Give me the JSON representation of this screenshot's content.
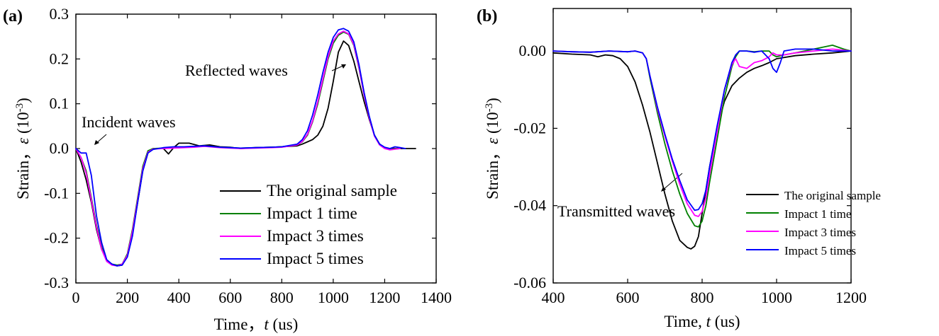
{
  "chart_data": [
    {
      "panel_label": "(a)",
      "type": "line",
      "xlabel_prefix": "Time，",
      "xlabel_var": "t",
      "xlabel_unit": " (us)",
      "ylabel_prefix": "Strain，",
      "ylabel_var": "ε",
      "ylabel_unit_base": " (10",
      "ylabel_unit_exp": "-3",
      "ylabel_unit_close": ")",
      "xlim": [
        0,
        1400
      ],
      "ylim": [
        -0.3,
        0.3
      ],
      "xticks": [
        0,
        200,
        400,
        600,
        800,
        1000,
        1200,
        1400
      ],
      "yticks": [
        -0.3,
        -0.2,
        -0.1,
        0.0,
        0.1,
        0.2,
        0.3
      ],
      "xtick_labels": [
        "0",
        "200",
        "400",
        "600",
        "800",
        "1000",
        "1200",
        "1400"
      ],
      "ytick_labels": [
        "-0.3",
        "-0.2",
        "-0.1",
        "0.0",
        "0.1",
        "0.2",
        "0.3"
      ],
      "grid": false,
      "legend_position": "bottom-right",
      "annotations": [
        "Incident waves",
        "Reflected waves"
      ],
      "series": [
        {
          "name": "The original sample",
          "color": "#000000",
          "x": [
            0,
            20,
            40,
            60,
            80,
            100,
            120,
            140,
            160,
            180,
            200,
            220,
            240,
            260,
            280,
            300,
            340,
            360,
            380,
            400,
            440,
            480,
            520,
            560,
            600,
            640,
            700,
            760,
            800,
            860,
            880,
            900,
            920,
            940,
            960,
            980,
            1000,
            1020,
            1040,
            1060,
            1080,
            1100,
            1120,
            1140,
            1160,
            1180,
            1200,
            1220,
            1240,
            1280,
            1320
          ],
          "y": [
            0.0,
            -0.03,
            -0.07,
            -0.12,
            -0.18,
            -0.225,
            -0.25,
            -0.258,
            -0.262,
            -0.26,
            -0.24,
            -0.19,
            -0.12,
            -0.05,
            -0.01,
            0.0,
            0.0,
            -0.012,
            0.002,
            0.012,
            0.012,
            0.006,
            0.008,
            0.004,
            0.003,
            0.0,
            0.002,
            0.003,
            0.004,
            0.006,
            0.01,
            0.015,
            0.02,
            0.03,
            0.05,
            0.09,
            0.15,
            0.215,
            0.24,
            0.23,
            0.195,
            0.15,
            0.105,
            0.065,
            0.03,
            0.01,
            0.002,
            0.0,
            0.0,
            0.0,
            0.0
          ]
        },
        {
          "name": "Impact 1 time",
          "color": "#008000",
          "x": [
            0,
            20,
            40,
            60,
            80,
            100,
            120,
            140,
            160,
            180,
            200,
            220,
            240,
            260,
            280,
            300,
            340,
            380,
            420,
            460,
            500,
            560,
            600,
            640,
            700,
            760,
            800,
            860,
            880,
            900,
            920,
            940,
            960,
            980,
            1000,
            1020,
            1040,
            1060,
            1080,
            1100,
            1120,
            1140,
            1160,
            1180,
            1200,
            1220,
            1260
          ],
          "y": [
            0.0,
            -0.02,
            -0.05,
            -0.11,
            -0.17,
            -0.22,
            -0.25,
            -0.258,
            -0.26,
            -0.258,
            -0.235,
            -0.18,
            -0.11,
            -0.04,
            -0.005,
            0.0,
            0.001,
            0.002,
            0.003,
            0.004,
            0.006,
            0.003,
            0.002,
            0.001,
            0.002,
            0.003,
            0.004,
            0.008,
            0.015,
            0.03,
            0.06,
            0.1,
            0.15,
            0.2,
            0.235,
            0.253,
            0.26,
            0.255,
            0.23,
            0.18,
            0.12,
            0.07,
            0.03,
            0.01,
            0.002,
            -0.002,
            0.0
          ]
        },
        {
          "name": "Impact 3 times",
          "color": "#ff00ff",
          "x": [
            0,
            20,
            40,
            60,
            80,
            100,
            120,
            140,
            160,
            180,
            200,
            220,
            240,
            260,
            280,
            300,
            340,
            380,
            420,
            460,
            500,
            560,
            600,
            640,
            700,
            760,
            800,
            860,
            880,
            900,
            920,
            940,
            960,
            980,
            1000,
            1020,
            1040,
            1060,
            1080,
            1100,
            1120,
            1140,
            1160,
            1180,
            1200,
            1220,
            1260
          ],
          "y": [
            0.0,
            -0.02,
            -0.055,
            -0.115,
            -0.175,
            -0.225,
            -0.252,
            -0.26,
            -0.262,
            -0.258,
            -0.238,
            -0.185,
            -0.115,
            -0.045,
            -0.008,
            -0.001,
            0.0,
            0.001,
            0.002,
            0.003,
            0.005,
            0.002,
            0.001,
            0.0,
            0.001,
            0.002,
            0.003,
            0.008,
            0.016,
            0.032,
            0.062,
            0.105,
            0.155,
            0.205,
            0.24,
            0.256,
            0.262,
            0.256,
            0.232,
            0.182,
            0.12,
            0.068,
            0.028,
            0.008,
            0.0,
            -0.003,
            0.0
          ]
        },
        {
          "name": "Impact 5 times",
          "color": "#0000ff",
          "x": [
            0,
            20,
            40,
            60,
            80,
            100,
            120,
            140,
            160,
            180,
            200,
            220,
            240,
            260,
            280,
            300,
            340,
            380,
            420,
            460,
            500,
            560,
            600,
            640,
            700,
            760,
            800,
            860,
            880,
            900,
            920,
            940,
            960,
            980,
            1000,
            1020,
            1040,
            1060,
            1080,
            1100,
            1120,
            1140,
            1160,
            1180,
            1200,
            1220,
            1240,
            1260,
            1280
          ],
          "y": [
            0.0,
            -0.01,
            -0.01,
            -0.06,
            -0.15,
            -0.21,
            -0.248,
            -0.258,
            -0.262,
            -0.26,
            -0.242,
            -0.195,
            -0.12,
            -0.05,
            -0.01,
            -0.002,
            0.002,
            0.004,
            0.004,
            0.005,
            0.006,
            0.003,
            0.002,
            0.001,
            0.002,
            0.003,
            0.004,
            0.01,
            0.02,
            0.04,
            0.075,
            0.12,
            0.17,
            0.215,
            0.248,
            0.265,
            0.268,
            0.262,
            0.238,
            0.188,
            0.125,
            0.072,
            0.03,
            0.01,
            0.003,
            0.0,
            0.004,
            0.002,
            0.0
          ]
        }
      ]
    },
    {
      "panel_label": "(b)",
      "type": "line",
      "xlabel_prefix": "Time, ",
      "xlabel_var": "t",
      "xlabel_unit": "  (us)",
      "ylabel_prefix": "Strain，",
      "ylabel_var": "ε",
      "ylabel_unit_base": " (10",
      "ylabel_unit_exp": "-3",
      "ylabel_unit_close": ")",
      "xlim": [
        400,
        1200
      ],
      "ylim": [
        -0.06,
        0.011
      ],
      "xticks": [
        400,
        600,
        800,
        1000,
        1200
      ],
      "yticks": [
        -0.06,
        -0.04,
        -0.02,
        0.0
      ],
      "xtick_labels": [
        "400",
        "600",
        "800",
        "1000",
        "1200"
      ],
      "ytick_labels": [
        "-0.06",
        "-0.04",
        "-0.02",
        "0.00"
      ],
      "grid": false,
      "legend_position": "bottom-right",
      "annotations": [
        "Transmitted waves"
      ],
      "series": [
        {
          "name": "The original sample",
          "color": "#000000",
          "x": [
            400,
            450,
            500,
            520,
            540,
            560,
            580,
            600,
            620,
            640,
            660,
            680,
            700,
            720,
            740,
            760,
            770,
            780,
            790,
            800,
            820,
            840,
            860,
            880,
            900,
            920,
            940,
            960,
            980,
            1000,
            1050,
            1100,
            1150,
            1200
          ],
          "y": [
            -0.0005,
            -0.0008,
            -0.001,
            -0.0015,
            -0.001,
            -0.0012,
            -0.002,
            -0.004,
            -0.008,
            -0.014,
            -0.021,
            -0.029,
            -0.037,
            -0.044,
            -0.049,
            -0.0508,
            -0.0512,
            -0.0505,
            -0.048,
            -0.042,
            -0.03,
            -0.02,
            -0.013,
            -0.009,
            -0.007,
            -0.0055,
            -0.0045,
            -0.0038,
            -0.003,
            -0.002,
            -0.0012,
            -0.0008,
            -0.0005,
            0.0
          ]
        },
        {
          "name": "Impact 1 time",
          "color": "#008000",
          "x": [
            400,
            450,
            500,
            550,
            600,
            620,
            640,
            650,
            660,
            680,
            700,
            720,
            740,
            760,
            780,
            790,
            800,
            810,
            820,
            840,
            860,
            880,
            890,
            900,
            920,
            940,
            960,
            980,
            990,
            1000,
            1020,
            1050,
            1100,
            1150,
            1180,
            1200
          ],
          "y": [
            0.0,
            -0.0002,
            -0.0003,
            0.0,
            -0.0002,
            0.0,
            -0.0005,
            -0.002,
            -0.007,
            -0.016,
            -0.024,
            -0.031,
            -0.037,
            -0.042,
            -0.0452,
            -0.0455,
            -0.044,
            -0.04,
            -0.034,
            -0.023,
            -0.012,
            -0.004,
            -0.0015,
            0.0,
            0.0,
            -0.0002,
            0.0,
            0.0,
            -0.001,
            -0.0015,
            -0.001,
            -0.0005,
            0.0005,
            0.0015,
            0.0005,
            0.0
          ]
        },
        {
          "name": "Impact 3 times",
          "color": "#ff00ff",
          "x": [
            400,
            450,
            500,
            550,
            600,
            620,
            640,
            650,
            660,
            680,
            700,
            720,
            740,
            760,
            780,
            790,
            800,
            810,
            820,
            840,
            860,
            880,
            890,
            900,
            920,
            940,
            960,
            980,
            990,
            1000,
            1020,
            1050,
            1100,
            1150,
            1200
          ],
          "y": [
            0.0,
            -0.0002,
            -0.0003,
            0.0,
            -0.0002,
            0.0,
            -0.0005,
            -0.002,
            -0.0065,
            -0.015,
            -0.022,
            -0.0285,
            -0.0345,
            -0.0395,
            -0.0425,
            -0.0428,
            -0.0415,
            -0.038,
            -0.032,
            -0.021,
            -0.01,
            -0.0035,
            -0.002,
            -0.004,
            -0.0045,
            -0.003,
            -0.0025,
            -0.0015,
            -0.0005,
            -0.001,
            -0.001,
            -0.0005,
            0.0,
            0.0005,
            0.0
          ]
        },
        {
          "name": "Impact 5 times",
          "color": "#0000ff",
          "x": [
            400,
            450,
            500,
            550,
            600,
            620,
            640,
            650,
            660,
            680,
            700,
            720,
            740,
            760,
            780,
            790,
            800,
            810,
            820,
            840,
            860,
            880,
            890,
            900,
            920,
            940,
            960,
            980,
            990,
            1000,
            1010,
            1020,
            1050,
            1100,
            1150,
            1200
          ],
          "y": [
            0.0,
            -0.0002,
            -0.0003,
            0.0,
            -0.0002,
            0.0,
            -0.0005,
            -0.002,
            -0.0065,
            -0.0145,
            -0.0215,
            -0.028,
            -0.0335,
            -0.0385,
            -0.0412,
            -0.041,
            -0.0395,
            -0.036,
            -0.03,
            -0.0195,
            -0.01,
            -0.003,
            -0.001,
            0.0,
            0.0,
            -0.0003,
            0.0,
            -0.002,
            -0.0045,
            -0.0055,
            -0.003,
            0.0,
            0.0005,
            0.0005,
            0.0,
            0.0
          ]
        }
      ]
    }
  ]
}
